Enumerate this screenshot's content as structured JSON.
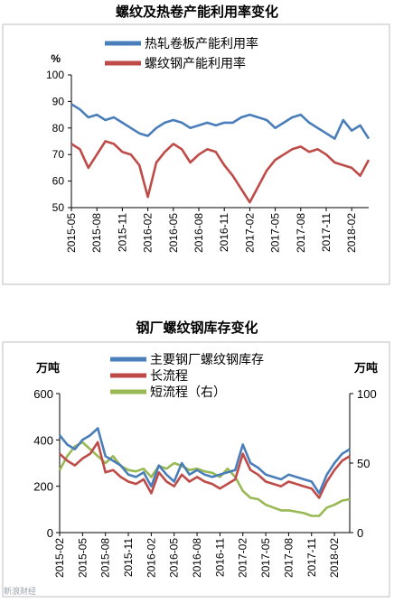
{
  "chart_data": [
    {
      "type": "line",
      "title": "螺纹及热卷产能利用率变化",
      "ylabel": "%",
      "ylim": [
        50,
        100
      ],
      "yticks": [
        50,
        60,
        70,
        80,
        90,
        100
      ],
      "xlim": [
        "2015-05",
        "2018-04"
      ],
      "xticks": [
        "2015-05",
        "2015-08",
        "2015-11",
        "2016-02",
        "2016-05",
        "2016-08",
        "2016-11",
        "2017-02",
        "2017-05",
        "2017-08",
        "2017-11",
        "2018-02"
      ],
      "grid": false,
      "legend_position": "top",
      "series": [
        {
          "name": "热轧卷板产能利用率",
          "color": "#4a7ebb",
          "points": [
            [
              "2015-05",
              89
            ],
            [
              "2015-06",
              87
            ],
            [
              "2015-07",
              84
            ],
            [
              "2015-08",
              85
            ],
            [
              "2015-09",
              83
            ],
            [
              "2015-10",
              84
            ],
            [
              "2015-11",
              82
            ],
            [
              "2015-12",
              80
            ],
            [
              "2016-01",
              78
            ],
            [
              "2016-02",
              77
            ],
            [
              "2016-03",
              80
            ],
            [
              "2016-04",
              82
            ],
            [
              "2016-05",
              83
            ],
            [
              "2016-06",
              82
            ],
            [
              "2016-07",
              80
            ],
            [
              "2016-08",
              81
            ],
            [
              "2016-09",
              82
            ],
            [
              "2016-10",
              81
            ],
            [
              "2016-11",
              82
            ],
            [
              "2016-12",
              82
            ],
            [
              "2017-01",
              84
            ],
            [
              "2017-02",
              85
            ],
            [
              "2017-03",
              84
            ],
            [
              "2017-04",
              83
            ],
            [
              "2017-05",
              80
            ],
            [
              "2017-06",
              82
            ],
            [
              "2017-07",
              84
            ],
            [
              "2017-08",
              85
            ],
            [
              "2017-09",
              82
            ],
            [
              "2017-10",
              80
            ],
            [
              "2017-11",
              78
            ],
            [
              "2017-12",
              76
            ],
            [
              "2018-01",
              83
            ],
            [
              "2018-02",
              79
            ],
            [
              "2018-03",
              81
            ],
            [
              "2018-04",
              76
            ]
          ]
        },
        {
          "name": "螺纹钢产能利用率",
          "color": "#be4b48",
          "points": [
            [
              "2015-05",
              74
            ],
            [
              "2015-06",
              72
            ],
            [
              "2015-07",
              65
            ],
            [
              "2015-08",
              70
            ],
            [
              "2015-09",
              75
            ],
            [
              "2015-10",
              74
            ],
            [
              "2015-11",
              71
            ],
            [
              "2015-12",
              70
            ],
            [
              "2016-01",
              66
            ],
            [
              "2016-02",
              54
            ],
            [
              "2016-03",
              67
            ],
            [
              "2016-04",
              71
            ],
            [
              "2016-05",
              74
            ],
            [
              "2016-06",
              72
            ],
            [
              "2016-07",
              67
            ],
            [
              "2016-08",
              70
            ],
            [
              "2016-09",
              72
            ],
            [
              "2016-10",
              71
            ],
            [
              "2016-11",
              66
            ],
            [
              "2016-12",
              62
            ],
            [
              "2017-01",
              57
            ],
            [
              "2017-02",
              52
            ],
            [
              "2017-03",
              58
            ],
            [
              "2017-04",
              64
            ],
            [
              "2017-05",
              68
            ],
            [
              "2017-06",
              70
            ],
            [
              "2017-07",
              72
            ],
            [
              "2017-08",
              73
            ],
            [
              "2017-09",
              71
            ],
            [
              "2017-10",
              72
            ],
            [
              "2017-11",
              70
            ],
            [
              "2017-12",
              67
            ],
            [
              "2018-01",
              66
            ],
            [
              "2018-02",
              65
            ],
            [
              "2018-03",
              62
            ],
            [
              "2018-04",
              68
            ]
          ]
        }
      ]
    },
    {
      "type": "line",
      "title": "钢厂螺纹钢库存变化",
      "ylabel_left": "万吨",
      "ylabel_right": "万吨",
      "ylim_left": [
        0,
        600
      ],
      "ylim_right": [
        0,
        100
      ],
      "yticks_left": [
        0,
        200,
        400,
        600
      ],
      "yticks_right": [
        0,
        50,
        100
      ],
      "xlim": [
        "2015-02",
        "2018-04"
      ],
      "xticks": [
        "2015-02",
        "2015-05",
        "2015-08",
        "2015-11",
        "2016-02",
        "2016-05",
        "2016-08",
        "2016-11",
        "2017-02",
        "2017-05",
        "2017-08",
        "2017-11",
        "2018-02"
      ],
      "grid": false,
      "legend_position": "top",
      "series": [
        {
          "name": "主要钢厂螺纹钢库存",
          "axis": "left",
          "color": "#4a7ebb",
          "points": [
            [
              "2015-02",
              420
            ],
            [
              "2015-03",
              380
            ],
            [
              "2015-04",
              360
            ],
            [
              "2015-05",
              400
            ],
            [
              "2015-06",
              420
            ],
            [
              "2015-07",
              450
            ],
            [
              "2015-08",
              330
            ],
            [
              "2015-09",
              310
            ],
            [
              "2015-10",
              290
            ],
            [
              "2015-11",
              250
            ],
            [
              "2015-12",
              240
            ],
            [
              "2016-01",
              260
            ],
            [
              "2016-02",
              200
            ],
            [
              "2016-03",
              290
            ],
            [
              "2016-04",
              250
            ],
            [
              "2016-05",
              220
            ],
            [
              "2016-06",
              300
            ],
            [
              "2016-07",
              250
            ],
            [
              "2016-08",
              270
            ],
            [
              "2016-09",
              250
            ],
            [
              "2016-10",
              240
            ],
            [
              "2016-11",
              250
            ],
            [
              "2016-12",
              260
            ],
            [
              "2017-01",
              270
            ],
            [
              "2017-02",
              380
            ],
            [
              "2017-03",
              300
            ],
            [
              "2017-04",
              280
            ],
            [
              "2017-05",
              250
            ],
            [
              "2017-06",
              240
            ],
            [
              "2017-07",
              230
            ],
            [
              "2017-08",
              250
            ],
            [
              "2017-09",
              240
            ],
            [
              "2017-10",
              230
            ],
            [
              "2017-11",
              220
            ],
            [
              "2017-12",
              170
            ],
            [
              "2018-01",
              250
            ],
            [
              "2018-02",
              300
            ],
            [
              "2018-03",
              340
            ],
            [
              "2018-04",
              360
            ]
          ]
        },
        {
          "name": "长流程",
          "axis": "left",
          "color": "#be4b48",
          "points": [
            [
              "2015-02",
              340
            ],
            [
              "2015-03",
              310
            ],
            [
              "2015-04",
              290
            ],
            [
              "2015-05",
              320
            ],
            [
              "2015-06",
              340
            ],
            [
              "2015-07",
              390
            ],
            [
              "2015-08",
              260
            ],
            [
              "2015-09",
              270
            ],
            [
              "2015-10",
              240
            ],
            [
              "2015-11",
              220
            ],
            [
              "2015-12",
              210
            ],
            [
              "2016-01",
              230
            ],
            [
              "2016-02",
              170
            ],
            [
              "2016-03",
              260
            ],
            [
              "2016-04",
              220
            ],
            [
              "2016-05",
              200
            ],
            [
              "2016-06",
              250
            ],
            [
              "2016-07",
              220
            ],
            [
              "2016-08",
              240
            ],
            [
              "2016-09",
              220
            ],
            [
              "2016-10",
              210
            ],
            [
              "2016-11",
              190
            ],
            [
              "2016-12",
              210
            ],
            [
              "2017-01",
              230
            ],
            [
              "2017-02",
              340
            ],
            [
              "2017-03",
              270
            ],
            [
              "2017-04",
              250
            ],
            [
              "2017-05",
              220
            ],
            [
              "2017-06",
              210
            ],
            [
              "2017-07",
              200
            ],
            [
              "2017-08",
              220
            ],
            [
              "2017-09",
              210
            ],
            [
              "2017-10",
              200
            ],
            [
              "2017-11",
              190
            ],
            [
              "2017-12",
              150
            ],
            [
              "2018-01",
              220
            ],
            [
              "2018-02",
              270
            ],
            [
              "2018-03",
              310
            ],
            [
              "2018-04",
              330
            ]
          ]
        },
        {
          "name": "短流程（右）",
          "axis": "right",
          "color": "#98b954",
          "points": [
            [
              "2015-02",
              45
            ],
            [
              "2015-03",
              55
            ],
            [
              "2015-04",
              62
            ],
            [
              "2015-05",
              65
            ],
            [
              "2015-06",
              60
            ],
            [
              "2015-07",
              55
            ],
            [
              "2015-08",
              50
            ],
            [
              "2015-09",
              55
            ],
            [
              "2015-10",
              48
            ],
            [
              "2015-11",
              45
            ],
            [
              "2015-12",
              44
            ],
            [
              "2016-01",
              46
            ],
            [
              "2016-02",
              40
            ],
            [
              "2016-03",
              48
            ],
            [
              "2016-04",
              46
            ],
            [
              "2016-05",
              50
            ],
            [
              "2016-06",
              48
            ],
            [
              "2016-07",
              45
            ],
            [
              "2016-08",
              46
            ],
            [
              "2016-09",
              44
            ],
            [
              "2016-10",
              43
            ],
            [
              "2016-11",
              40
            ],
            [
              "2016-12",
              46
            ],
            [
              "2017-01",
              40
            ],
            [
              "2017-02",
              30
            ],
            [
              "2017-03",
              25
            ],
            [
              "2017-04",
              24
            ],
            [
              "2017-05",
              20
            ],
            [
              "2017-06",
              18
            ],
            [
              "2017-07",
              16
            ],
            [
              "2017-08",
              16
            ],
            [
              "2017-09",
              15
            ],
            [
              "2017-10",
              14
            ],
            [
              "2017-11",
              12
            ],
            [
              "2017-12",
              12
            ],
            [
              "2018-01",
              18
            ],
            [
              "2018-02",
              20
            ],
            [
              "2018-03",
              23
            ],
            [
              "2018-04",
              24
            ]
          ]
        }
      ]
    }
  ],
  "watermark": "新浪财经"
}
